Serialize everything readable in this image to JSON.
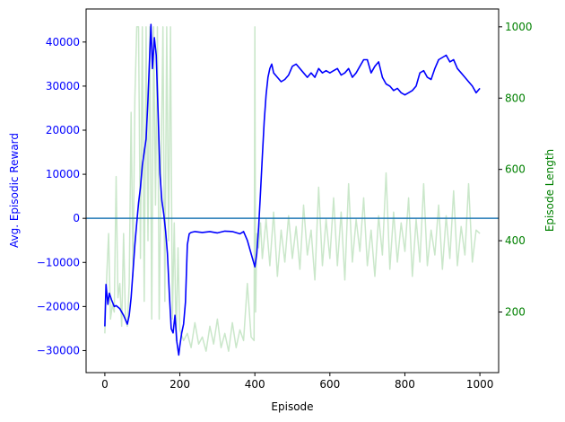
{
  "chart_data": {
    "type": "line",
    "xlabel": "Episode",
    "ylabel_left": "Avg. Episodic Reward",
    "ylabel_right": "Episode Length",
    "xlim": [
      -50,
      1050
    ],
    "ylim_left": [
      -35000,
      47500
    ],
    "ylim_right": [
      30,
      1050
    ],
    "x_ticks": [
      0,
      200,
      400,
      600,
      800,
      1000
    ],
    "y_left_ticks": [
      -30000,
      -20000,
      -10000,
      0,
      10000,
      20000,
      30000,
      40000
    ],
    "y_right_ticks": [
      200,
      400,
      600,
      800,
      1000
    ],
    "reference_line": {
      "axis": "left",
      "y": 0,
      "color": "#1f77b4"
    },
    "colors": {
      "reward": "#0000ff",
      "length": "#2ca02c",
      "left_axis": "#0000ff",
      "right_axis": "#008000"
    },
    "series": [
      {
        "axis": "left",
        "color": "#0000ff",
        "x": [
          0,
          3,
          8,
          12,
          18,
          25,
          30,
          40,
          50,
          55,
          60,
          65,
          70,
          75,
          80,
          85,
          90,
          95,
          100,
          105,
          110,
          115,
          120,
          123,
          127,
          132,
          137,
          142,
          147,
          152,
          157,
          162,
          167,
          172,
          177,
          182,
          187,
          192,
          197,
          200,
          205,
          210,
          215,
          220,
          225,
          230,
          240,
          260,
          280,
          300,
          320,
          340,
          360,
          370,
          380,
          390,
          395,
          400,
          405,
          410,
          415,
          420,
          425,
          430,
          435,
          440,
          445,
          450,
          460,
          470,
          480,
          490,
          500,
          510,
          520,
          530,
          540,
          550,
          560,
          570,
          580,
          590,
          600,
          610,
          620,
          630,
          640,
          650,
          660,
          670,
          680,
          690,
          700,
          710,
          720,
          730,
          740,
          750,
          760,
          770,
          780,
          790,
          800,
          810,
          820,
          830,
          840,
          850,
          860,
          870,
          880,
          890,
          900,
          910,
          920,
          930,
          940,
          950,
          960,
          970,
          980,
          990,
          1000
        ],
        "y": [
          -24500,
          -15000,
          -19500,
          -17000,
          -18500,
          -20000,
          -19800,
          -20500,
          -22000,
          -23000,
          -24000,
          -22000,
          -18000,
          -12000,
          -6000,
          -1000,
          3500,
          7000,
          12000,
          15000,
          18000,
          27000,
          38000,
          44000,
          34000,
          41000,
          37000,
          24000,
          10000,
          4000,
          1000,
          -3000,
          -8000,
          -17000,
          -25000,
          -26000,
          -22000,
          -28000,
          -31000,
          -29000,
          -26000,
          -24000,
          -19000,
          -6000,
          -3500,
          -3200,
          -3000,
          -3200,
          -3000,
          -3300,
          -2900,
          -3000,
          -3500,
          -3000,
          -5000,
          -8000,
          -9500,
          -11000,
          -8000,
          -2000,
          6000,
          14000,
          22000,
          28000,
          32000,
          34000,
          35000,
          33000,
          32000,
          31000,
          31500,
          32500,
          34500,
          35000,
          34000,
          33000,
          32000,
          33000,
          32000,
          34000,
          33000,
          33500,
          33000,
          33500,
          34000,
          32500,
          33000,
          34000,
          32000,
          33000,
          34500,
          36000,
          36000,
          33000,
          34500,
          35500,
          32000,
          30500,
          30000,
          29000,
          29500,
          28500,
          28000,
          28500,
          29000,
          30000,
          33000,
          33500,
          32000,
          31500,
          34000,
          36000,
          36500,
          37000,
          35500,
          36000,
          34000,
          33000,
          32000,
          31000,
          30000,
          28500,
          29500
        ]
      },
      {
        "axis": "right",
        "color": "#2ca02c",
        "x": [
          0,
          5,
          10,
          15,
          20,
          25,
          30,
          35,
          40,
          45,
          50,
          55,
          60,
          65,
          70,
          75,
          80,
          85,
          90,
          95,
          100,
          105,
          110,
          115,
          120,
          125,
          130,
          135,
          140,
          145,
          150,
          155,
          160,
          165,
          170,
          175,
          180,
          185,
          190,
          195,
          200,
          210,
          220,
          230,
          240,
          250,
          260,
          270,
          280,
          290,
          300,
          310,
          320,
          330,
          340,
          350,
          360,
          370,
          380,
          390,
          398,
          400,
          402,
          405,
          410,
          415,
          420,
          430,
          440,
          450,
          460,
          470,
          480,
          490,
          500,
          510,
          520,
          530,
          540,
          550,
          560,
          570,
          580,
          590,
          600,
          610,
          620,
          630,
          640,
          650,
          660,
          670,
          680,
          690,
          700,
          710,
          720,
          730,
          740,
          750,
          760,
          770,
          780,
          790,
          800,
          810,
          820,
          830,
          840,
          850,
          860,
          870,
          880,
          890,
          900,
          910,
          920,
          930,
          940,
          950,
          960,
          970,
          980,
          990,
          1000
        ],
        "y": [
          140,
          300,
          420,
          180,
          220,
          200,
          580,
          240,
          280,
          160,
          420,
          180,
          160,
          280,
          760,
          300,
          800,
          1000,
          1000,
          350,
          1000,
          230,
          1000,
          400,
          1000,
          180,
          1000,
          500,
          1000,
          180,
          600,
          1000,
          230,
          1000,
          400,
          1000,
          180,
          450,
          120,
          380,
          150,
          120,
          140,
          100,
          170,
          110,
          130,
          90,
          160,
          110,
          180,
          100,
          140,
          90,
          170,
          100,
          150,
          120,
          280,
          130,
          120,
          1000,
          200,
          420,
          380,
          450,
          350,
          460,
          330,
          480,
          300,
          430,
          340,
          470,
          350,
          440,
          320,
          500,
          360,
          430,
          290,
          550,
          330,
          460,
          350,
          520,
          330,
          480,
          290,
          560,
          340,
          460,
          370,
          520,
          330,
          430,
          300,
          470,
          360,
          590,
          320,
          480,
          340,
          450,
          370,
          520,
          300,
          460,
          340,
          560,
          330,
          430,
          360,
          500,
          320,
          470,
          350,
          540,
          330,
          440,
          360,
          560,
          340,
          430,
          420
        ]
      }
    ]
  }
}
